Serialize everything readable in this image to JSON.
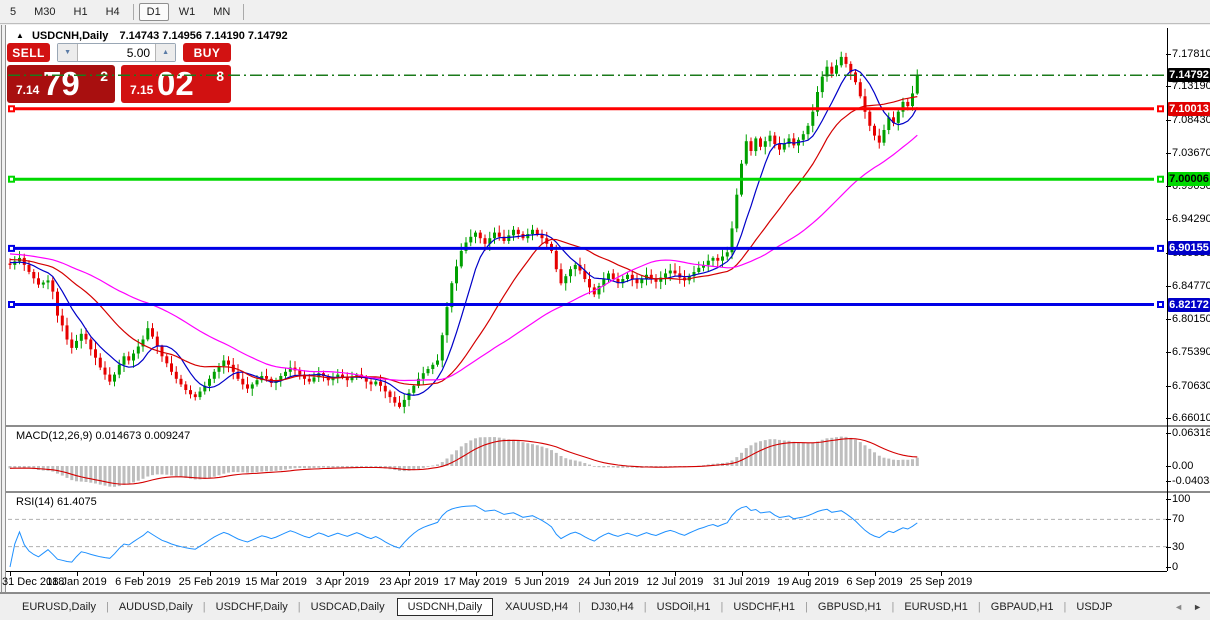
{
  "toolbar": {
    "timeframes": [
      "5",
      "M30",
      "H1",
      "H4",
      "D1",
      "W1",
      "MN"
    ],
    "active": "D1"
  },
  "chart": {
    "header": {
      "collapse_icon": "▲",
      "title": "USDCNH,Daily",
      "ohlc": "7.14743 7.14956 7.14190 7.14792"
    },
    "trade_panel": {
      "sell_label": "SELL",
      "buy_label": "BUY",
      "volume": "5.00",
      "spinner_down_icon": "▼",
      "spinner_up_icon": "▲",
      "sell_price": {
        "small": "7.14",
        "big": "79",
        "sup": "2"
      },
      "buy_price": {
        "small": "7.15",
        "big": "02",
        "sup": "8"
      }
    },
    "price_ticks": [
      "7.17810",
      "7.13190",
      "7.08430",
      "7.03670",
      "6.99050",
      "6.94290",
      "6.89530",
      "6.84770",
      "6.80150",
      "6.75390",
      "6.70630",
      "6.66010"
    ],
    "levels": [
      {
        "label": "7.14792",
        "price": 7.14792,
        "line_color": "#1b7a1b",
        "style": "dashdot",
        "width": 1.5,
        "tag_bg": "#000000",
        "tag_fg": "#ffffff",
        "handles": false
      },
      {
        "label": "7.10013",
        "price": 7.10013,
        "line_color": "#ff0000",
        "style": "solid",
        "width": 3,
        "tag_bg": "#e00000",
        "tag_fg": "#ffffff",
        "handles": true
      },
      {
        "label": "7.00006",
        "price": 7.00006,
        "line_color": "#00d800",
        "style": "solid",
        "width": 3,
        "tag_bg": "#00d800",
        "tag_fg": "#000000",
        "handles": true
      },
      {
        "label": "6.90155",
        "price": 6.90155,
        "line_color": "#0000e6",
        "style": "solid",
        "width": 3,
        "tag_bg": "#0000c8",
        "tag_fg": "#ffffff",
        "handles": true
      },
      {
        "label": "6.82172",
        "price": 6.82172,
        "line_color": "#0000e6",
        "style": "solid",
        "width": 3,
        "tag_bg": "#0000c8",
        "tag_fg": "#ffffff",
        "handles": true
      }
    ]
  },
  "indicators": {
    "macd": {
      "label": "MACD(12,26,9) 0.014673 0.009247",
      "axis": [
        {
          "label": "0.063184",
          "value": 0.063184
        },
        {
          "label": "0.00",
          "value": 0
        },
        {
          "label": "-0.040355",
          "value": -0.040355
        }
      ]
    },
    "rsi": {
      "label": "RSI(14) 61.4075",
      "axis": [
        {
          "label": "100",
          "value": 100
        },
        {
          "label": "70",
          "value": 70
        },
        {
          "label": "30",
          "value": 30
        },
        {
          "label": "0",
          "value": 0
        }
      ],
      "level_lines": [
        70,
        30
      ]
    }
  },
  "tabs": {
    "items": [
      "EURUSD,Daily",
      "AUDUSD,Daily",
      "USDCHF,Daily",
      "USDCAD,Daily",
      "USDCNH,Daily",
      "XAUUSD,H4",
      "DJ30,H4",
      "USDOil,H1",
      "USDCHF,H1",
      "GBPUSD,H1",
      "EURUSD,H1",
      "GBPAUD,H1",
      "USDJP"
    ],
    "active": "USDCNH,Daily",
    "scroll_left": "◄",
    "scroll_right": "►"
  },
  "chart_data": {
    "type": "candlestick",
    "symbol": "USDCNH",
    "timeframe": "Daily",
    "title": "USDCNH,Daily",
    "current_price": 7.14792,
    "x_dates": [
      "31 Dec 2018",
      "18 Jan 2019",
      "6 Feb 2019",
      "25 Feb 2019",
      "15 Mar 2019",
      "3 Apr 2019",
      "23 Apr 2019",
      "17 May 2019",
      "5 Jun 2019",
      "24 Jun 2019",
      "12 Jul 2019",
      "31 Jul 2019",
      "19 Aug 2019",
      "6 Sep 2019",
      "25 Sep 2019"
    ],
    "date_tick_bars": [
      0,
      14,
      28,
      42,
      56,
      70,
      84,
      98,
      112,
      126,
      140,
      154,
      168,
      182,
      196
    ],
    "y_range": {
      "top": 7.2151,
      "bottom": 6.6503
    },
    "closes": [
      6.878,
      6.883,
      6.888,
      6.878,
      6.868,
      6.859,
      6.85,
      6.853,
      6.856,
      6.84,
      6.806,
      6.792,
      6.772,
      6.76,
      6.77,
      6.78,
      6.772,
      6.758,
      6.746,
      6.732,
      6.722,
      6.712,
      6.722,
      6.736,
      6.748,
      6.742,
      6.752,
      6.762,
      6.772,
      6.788,
      6.776,
      6.762,
      6.748,
      6.738,
      6.726,
      6.716,
      6.708,
      6.7,
      6.694,
      6.69,
      6.698,
      6.706,
      6.716,
      6.726,
      6.734,
      6.742,
      6.736,
      6.726,
      6.716,
      6.708,
      6.702,
      6.708,
      6.714,
      6.72,
      6.716,
      6.71,
      6.714,
      6.72,
      6.726,
      6.732,
      6.728,
      6.722,
      6.716,
      6.712,
      6.718,
      6.724,
      6.72,
      6.714,
      6.718,
      6.722,
      6.718,
      6.714,
      6.718,
      6.722,
      6.718,
      6.712,
      6.708,
      6.712,
      6.706,
      6.698,
      6.69,
      6.682,
      6.676,
      6.686,
      6.696,
      6.706,
      6.716,
      6.724,
      6.73,
      6.736,
      6.742,
      6.778,
      6.818,
      6.852,
      6.876,
      6.898,
      6.91,
      6.918,
      6.924,
      6.916,
      6.908,
      6.916,
      6.924,
      6.918,
      6.912,
      6.92,
      6.928,
      6.922,
      6.916,
      6.922,
      6.928,
      6.922,
      6.916,
      6.908,
      6.898,
      6.872,
      6.852,
      6.862,
      6.872,
      6.878,
      6.87,
      6.858,
      6.846,
      6.836,
      6.848,
      6.858,
      6.866,
      6.858,
      6.852,
      6.858,
      6.864,
      6.858,
      6.852,
      6.858,
      6.864,
      6.858,
      6.854,
      6.86,
      6.866,
      6.87,
      6.866,
      6.86,
      6.856,
      6.862,
      6.868,
      6.874,
      6.878,
      6.884,
      6.888,
      6.884,
      6.89,
      6.896,
      6.93,
      6.978,
      7.022,
      7.054,
      7.04,
      7.058,
      7.046,
      7.054,
      7.062,
      7.05,
      7.042,
      7.05,
      7.058,
      7.048,
      7.056,
      7.064,
      7.076,
      7.096,
      7.124,
      7.146,
      7.16,
      7.15,
      7.162,
      7.174,
      7.164,
      7.152,
      7.138,
      7.118,
      7.096,
      7.076,
      7.062,
      7.052,
      7.07,
      7.088,
      7.08,
      7.096,
      7.11,
      7.104,
      7.122,
      7.148
    ],
    "pre_pad": {
      "count": 50,
      "from": 6.912,
      "to": 6.88
    },
    "up_color": "#00a000",
    "down_color": "#e60000",
    "ma": [
      {
        "period": 8,
        "color": "#0000c8"
      },
      {
        "period": 21,
        "color": "#d40000"
      },
      {
        "period": 45,
        "color": "#ff00ff"
      }
    ],
    "macd": {
      "fast": 12,
      "slow": 26,
      "signal": 9,
      "value": 0.014673,
      "signal_value": 0.009247,
      "axis_max": 0.063184,
      "axis_min": -0.040355,
      "hist_color": "#bebebe",
      "signal_color": "#d40000"
    },
    "rsi": {
      "period": 14,
      "value": 61.4075,
      "range": [
        0,
        100
      ],
      "color": "#1e90ff"
    }
  }
}
